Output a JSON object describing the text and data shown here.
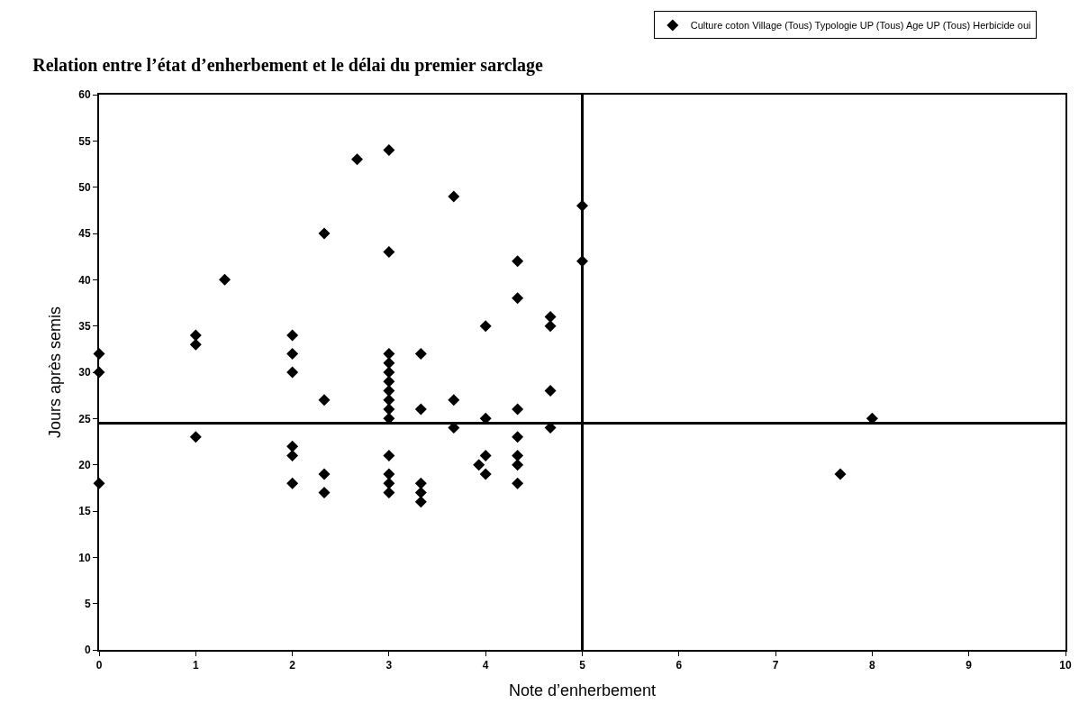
{
  "chart_data": {
    "type": "scatter",
    "title": "Relation entre l’état d’enherbement et le délai du premier sarclage",
    "xlabel": "Note d’enherbement",
    "ylabel": "Jours après semis",
    "series": [
      {
        "name": "Culture coton Village (Tous) Typologie UP (Tous) Age UP (Tous) Herbicide oui",
        "color": "#000000",
        "x": [
          0,
          0,
          0,
          1,
          1,
          1,
          1.3,
          2,
          2,
          2,
          2,
          2,
          2,
          2.33,
          2.33,
          2.33,
          2.33,
          2.67,
          3,
          3,
          3,
          3,
          3,
          3,
          3,
          3,
          3,
          3,
          3,
          3,
          3,
          3,
          3.33,
          3.33,
          3.33,
          3.33,
          3.33,
          3.67,
          3.67,
          3.67,
          3.93,
          4,
          4,
          4,
          4,
          4.33,
          4.33,
          4.33,
          4.33,
          4.33,
          4.33,
          4.33,
          4.67,
          4.67,
          4.67,
          4.67,
          5,
          5,
          7.67,
          8
        ],
        "values": [
          32,
          30,
          18,
          34,
          33,
          23,
          40,
          34,
          32,
          30,
          22,
          21,
          18,
          45,
          27,
          19,
          17,
          53,
          54,
          43,
          32,
          31,
          30,
          29,
          28,
          27,
          26,
          25,
          21,
          19,
          18,
          17,
          32,
          26,
          18,
          17,
          16,
          49,
          27,
          24,
          20,
          35,
          25,
          21,
          19,
          42,
          38,
          26,
          23,
          21,
          20,
          18,
          36,
          35,
          28,
          24,
          48,
          42,
          19,
          25
        ]
      }
    ],
    "xlim": [
      0,
      10
    ],
    "xticks": [
      0,
      1,
      2,
      3,
      4,
      5,
      6,
      7,
      8,
      9,
      10
    ],
    "ylim": [
      0,
      60
    ],
    "yticks": [
      0,
      5,
      10,
      15,
      20,
      25,
      30,
      35,
      40,
      45,
      50,
      55,
      60
    ],
    "ref_lines": [
      {
        "axis": "x",
        "value": 5,
        "color": "#000000"
      },
      {
        "axis": "y",
        "value": 24.5,
        "color": "#000000"
      }
    ],
    "marker": "diamond",
    "grid": false,
    "legend": "top right"
  }
}
